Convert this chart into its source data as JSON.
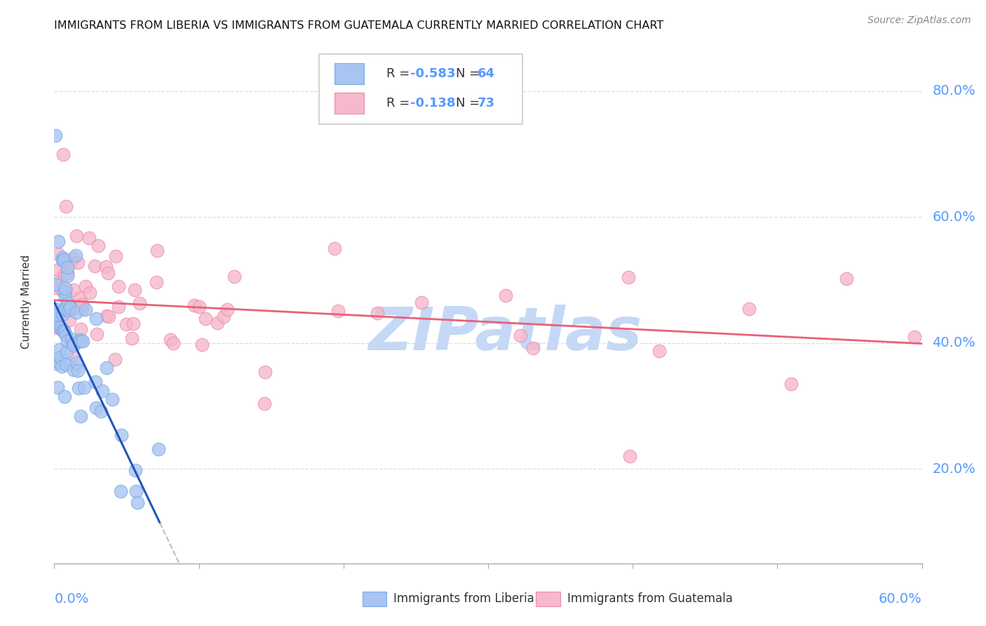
{
  "title": "IMMIGRANTS FROM LIBERIA VS IMMIGRANTS FROM GUATEMALA CURRENTLY MARRIED CORRELATION CHART",
  "source": "Source: ZipAtlas.com",
  "ylabel": "Currently Married",
  "liberia_color": "#a8c4f0",
  "liberia_edge": "#7aaae8",
  "guatemala_color": "#f5b8cc",
  "guatemala_edge": "#ee8aaa",
  "liberia_R": -0.583,
  "liberia_N": 64,
  "guatemala_R": -0.138,
  "guatemala_N": 73,
  "liberia_line_color": "#2255bb",
  "guatemala_line_color": "#e8607a",
  "watermark": "ZIPatlas",
  "watermark_color": "#c5d8f5",
  "xmin": 0.0,
  "xmax": 0.6,
  "ymin": 0.05,
  "ymax": 0.88,
  "ytick_vals": [
    0.2,
    0.4,
    0.6,
    0.8
  ],
  "ytick_labels": [
    "20.0%",
    "40.0%",
    "60.0%",
    "80.0%"
  ],
  "grid_color": "#dddddd",
  "axis_color": "#aaaaaa",
  "label_color": "#5599ff",
  "text_color": "#333333",
  "lib_slope": -4.8,
  "lib_intercept": 0.465,
  "guat_slope": -0.115,
  "guat_intercept": 0.468,
  "lib_line_xend": 0.073,
  "lib_dash_xend": 0.38
}
